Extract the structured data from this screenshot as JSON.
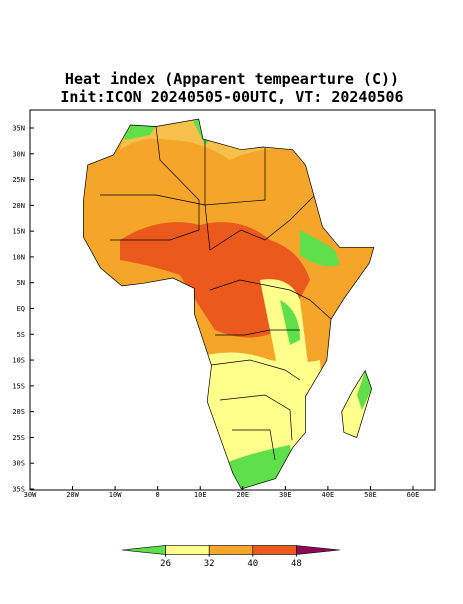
{
  "header": {
    "title": "Heat index (Apparent tempearture (C))",
    "subtitle": "Init:ICON 20240505-00UTC, VT: 20240506"
  },
  "map": {
    "lat_labels": [
      "35N",
      "30N",
      "25N",
      "20N",
      "15N",
      "10N",
      "5N",
      "EQ",
      "5S",
      "10S",
      "15S",
      "20S",
      "25S",
      "30S",
      "35S"
    ],
    "lon_labels": [
      "30W",
      "20W",
      "10W",
      "0",
      "10E",
      "20E",
      "30E",
      "40E",
      "50E",
      "60E"
    ]
  },
  "colorbar": {
    "ticks": [
      26,
      32,
      40,
      48
    ],
    "colors": [
      "#5fe04a",
      "#ffff8c",
      "#f4a52a",
      "#eb5a1c",
      "#8c0a50"
    ]
  }
}
